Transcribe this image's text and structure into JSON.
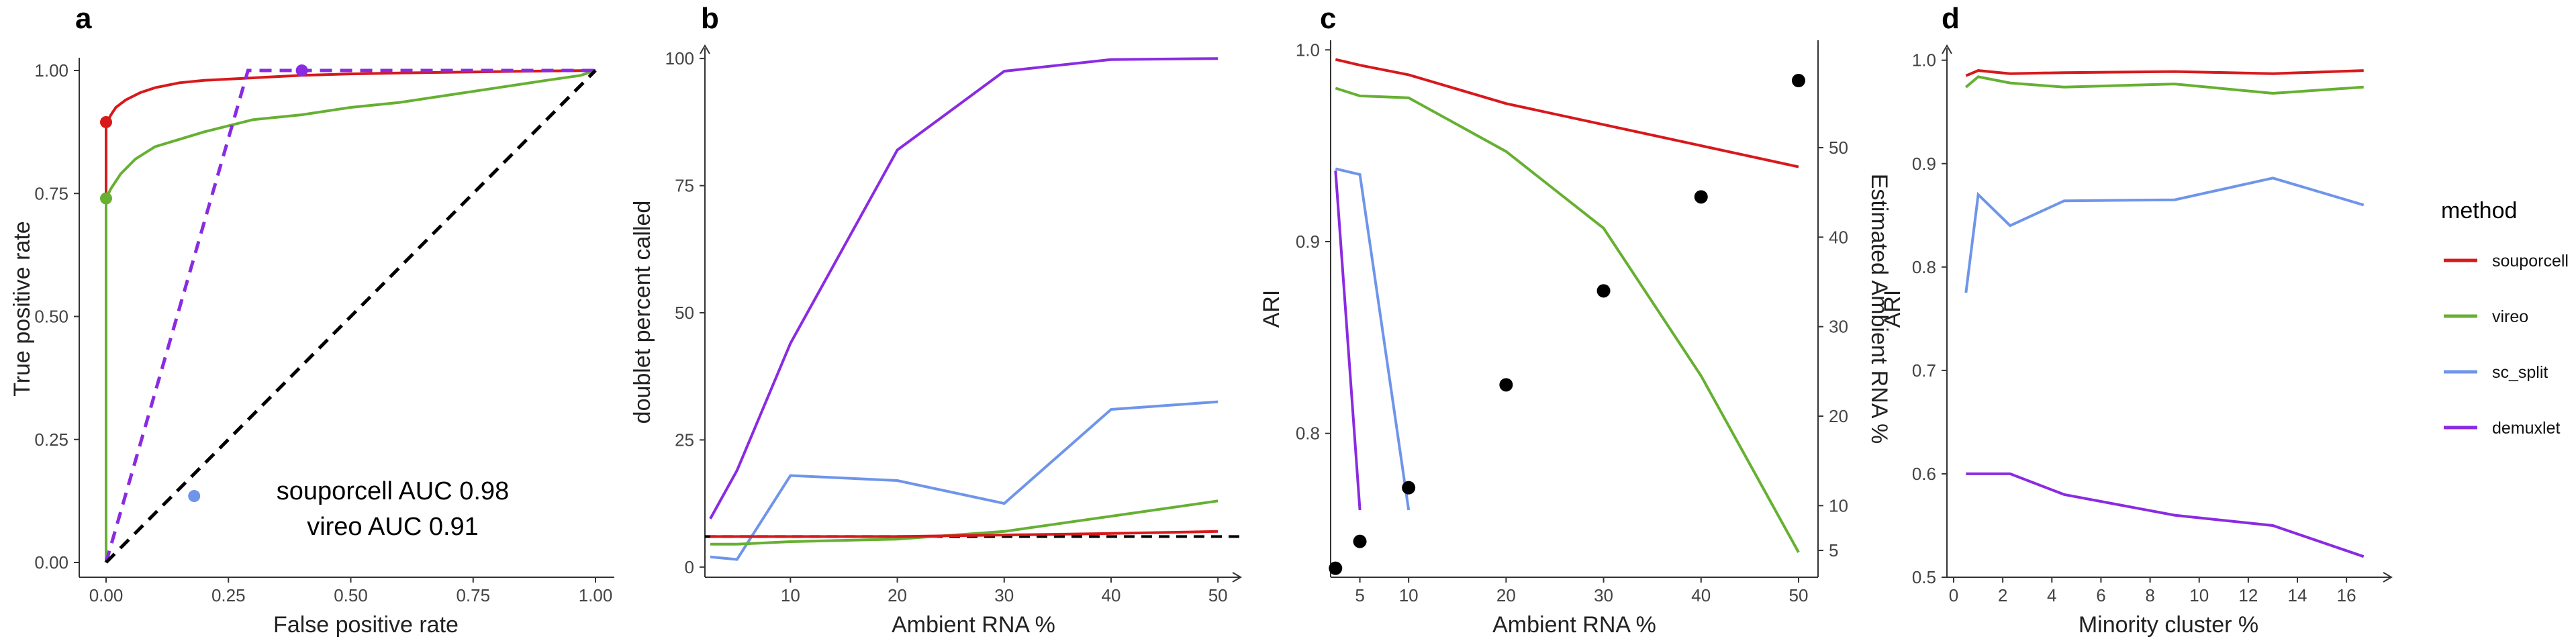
{
  "colors": {
    "souporcell": "#d7191c",
    "vireo": "#66b032",
    "sc_split": "#6f95ea",
    "demuxlet": "#8a2be2",
    "reference": "#000000"
  },
  "legend": {
    "title": "method",
    "items": [
      {
        "label": "souporcell",
        "color_key": "souporcell"
      },
      {
        "label": "vireo",
        "color_key": "vireo"
      },
      {
        "label": "sc_split",
        "color_key": "sc_split"
      },
      {
        "label": "demuxlet",
        "color_key": "demuxlet"
      }
    ]
  },
  "chart_data": [
    {
      "panel": "a",
      "type": "line",
      "xlabel": "False positive rate",
      "ylabel": "True positive rate",
      "xlim": [
        0,
        1
      ],
      "ylim": [
        0,
        1
      ],
      "xticks": [
        "0.00",
        "0.25",
        "0.50",
        "0.75",
        "1.00"
      ],
      "yticks": [
        "0.00",
        "0.25",
        "0.50",
        "0.75",
        "1.00"
      ],
      "annotations": [
        "souporcell AUC 0.98",
        "vireo AUC 0.91"
      ],
      "series": [
        {
          "name": "souporcell",
          "color_key": "souporcell",
          "dash": false,
          "x": [
            0,
            0,
            0.005,
            0.01,
            0.02,
            0.04,
            0.07,
            0.1,
            0.15,
            0.2,
            0.3,
            0.4,
            0.5,
            0.6,
            0.75,
            0.9,
            1.0
          ],
          "y": [
            0,
            0.895,
            0.9,
            0.91,
            0.925,
            0.94,
            0.955,
            0.965,
            0.975,
            0.98,
            0.985,
            0.99,
            0.993,
            0.995,
            0.997,
            0.999,
            1.0
          ],
          "point": [
            0,
            0.895
          ]
        },
        {
          "name": "vireo",
          "color_key": "vireo",
          "dash": false,
          "x": [
            0,
            0,
            0.01,
            0.03,
            0.06,
            0.1,
            0.15,
            0.2,
            0.3,
            0.4,
            0.5,
            0.6,
            0.7,
            0.8,
            0.9,
            0.97,
            1.0
          ],
          "y": [
            0,
            0.74,
            0.76,
            0.79,
            0.82,
            0.845,
            0.86,
            0.875,
            0.9,
            0.91,
            0.925,
            0.935,
            0.95,
            0.965,
            0.98,
            0.99,
            1.0
          ],
          "point": [
            0,
            0.74
          ]
        },
        {
          "name": "demuxlet",
          "color_key": "demuxlet",
          "dash": true,
          "x": [
            0,
            0.29,
            1.0
          ],
          "y": [
            0,
            1.0,
            1.0
          ],
          "point": [
            0.4,
            1.0
          ]
        },
        {
          "name": "sc_split",
          "color_key": "sc_split",
          "dash": false,
          "x": [],
          "y": [],
          "point": [
            0.18,
            0.135
          ]
        },
        {
          "name": "reference",
          "color_key": "reference",
          "dash": true,
          "x": [
            0,
            1
          ],
          "y": [
            0,
            1
          ]
        }
      ]
    },
    {
      "panel": "b",
      "type": "line",
      "xlabel": "Ambient RNA %",
      "ylabel": "doublet percent called",
      "xlim": [
        2,
        52
      ],
      "ylim": [
        -2,
        102
      ],
      "xticks": [
        10,
        20,
        30,
        40,
        50
      ],
      "yticks": [
        0,
        25,
        50,
        75,
        100
      ],
      "hline": 6,
      "series": [
        {
          "name": "demuxlet",
          "color_key": "demuxlet",
          "x": [
            2.5,
            5,
            10,
            20,
            30,
            40,
            50
          ],
          "y": [
            9.5,
            19,
            44,
            82,
            97.5,
            99.8,
            100
          ]
        },
        {
          "name": "sc_split",
          "color_key": "sc_split",
          "x": [
            2.5,
            5,
            10,
            20,
            30,
            40,
            50
          ],
          "y": [
            2,
            1.5,
            18,
            17,
            12.5,
            31,
            32.5
          ]
        },
        {
          "name": "vireo",
          "color_key": "vireo",
          "x": [
            2.5,
            5,
            10,
            20,
            30,
            40,
            50
          ],
          "y": [
            4.5,
            4.5,
            5,
            5.5,
            7,
            10,
            13
          ]
        },
        {
          "name": "souporcell",
          "color_key": "souporcell",
          "x": [
            2.5,
            5,
            10,
            20,
            30,
            40,
            50
          ],
          "y": [
            6,
            6,
            6,
            6,
            6.3,
            6.6,
            7
          ]
        }
      ]
    },
    {
      "panel": "c",
      "type": "line",
      "xlabel": "Ambient RNA %",
      "ylabel": "ARI",
      "y2label": "Estimated Ambient RNA %",
      "xlim": [
        2,
        52
      ],
      "ylim": [
        0.725,
        1.005
      ],
      "y2lim": [
        2,
        62
      ],
      "xticks": [
        5,
        10,
        20,
        30,
        40,
        50
      ],
      "yticks": [
        "0.8",
        "0.9",
        "1.0"
      ],
      "yticks_values": [
        0.8,
        0.9,
        1.0
      ],
      "y2ticks": [
        5,
        10,
        20,
        30,
        40,
        50
      ],
      "series": [
        {
          "name": "souporcell",
          "color_key": "souporcell",
          "x": [
            2.5,
            5,
            10,
            20,
            30,
            40,
            50
          ],
          "y": [
            0.995,
            0.992,
            0.987,
            0.972,
            0.961,
            0.95,
            0.939
          ]
        },
        {
          "name": "vireo",
          "color_key": "vireo",
          "x": [
            2.5,
            5,
            10,
            20,
            30,
            40,
            50
          ],
          "y": [
            0.98,
            0.976,
            0.975,
            0.947,
            0.907,
            0.83,
            0.738
          ]
        },
        {
          "name": "sc_split",
          "color_key": "sc_split",
          "x": [
            2.5,
            5,
            10
          ],
          "y": [
            0.938,
            0.935,
            0.76
          ]
        },
        {
          "name": "demuxlet",
          "color_key": "demuxlet",
          "x": [
            2.5,
            5
          ],
          "y": [
            0.937,
            0.76
          ]
        }
      ],
      "points": {
        "name": "Estimated Ambient RNA %",
        "axis": "y2",
        "x": [
          2.5,
          5,
          10,
          20,
          30,
          40,
          50
        ],
        "y": [
          3,
          6,
          12,
          23.5,
          34,
          44.5,
          57.5
        ]
      }
    },
    {
      "panel": "d",
      "type": "line",
      "xlabel": "Minority cluster %",
      "ylabel": "ARI",
      "xlim": [
        0,
        17.5
      ],
      "ylim": [
        0.5,
        1.005
      ],
      "xticks": [
        0,
        2,
        4,
        6,
        8,
        10,
        12,
        14,
        16
      ],
      "yticks": [
        "0.5",
        "0.6",
        "0.7",
        "0.8",
        "0.9",
        "1.0"
      ],
      "yticks_values": [
        0.5,
        0.6,
        0.7,
        0.8,
        0.9,
        1.0
      ],
      "series": [
        {
          "name": "souporcell",
          "color_key": "souporcell",
          "x": [
            0.5,
            1,
            2.3,
            4.5,
            9,
            13,
            16.7
          ],
          "y": [
            0.985,
            0.99,
            0.987,
            0.988,
            0.989,
            0.987,
            0.99
          ]
        },
        {
          "name": "vireo",
          "color_key": "vireo",
          "x": [
            0.5,
            1,
            2.3,
            4.5,
            9,
            13,
            16.7
          ],
          "y": [
            0.974,
            0.984,
            0.978,
            0.974,
            0.977,
            0.968,
            0.974
          ]
        },
        {
          "name": "sc_split",
          "color_key": "sc_split",
          "x": [
            0.5,
            1,
            2.3,
            4.5,
            9,
            13,
            16.7
          ],
          "y": [
            0.775,
            0.87,
            0.84,
            0.864,
            0.865,
            0.886,
            0.86
          ]
        },
        {
          "name": "demuxlet",
          "color_key": "demuxlet",
          "x": [
            0.5,
            1,
            2.3,
            4.5,
            9,
            13,
            16.7
          ],
          "y": [
            0.6,
            0.6,
            0.6,
            0.58,
            0.56,
            0.55,
            0.52
          ]
        }
      ]
    }
  ]
}
